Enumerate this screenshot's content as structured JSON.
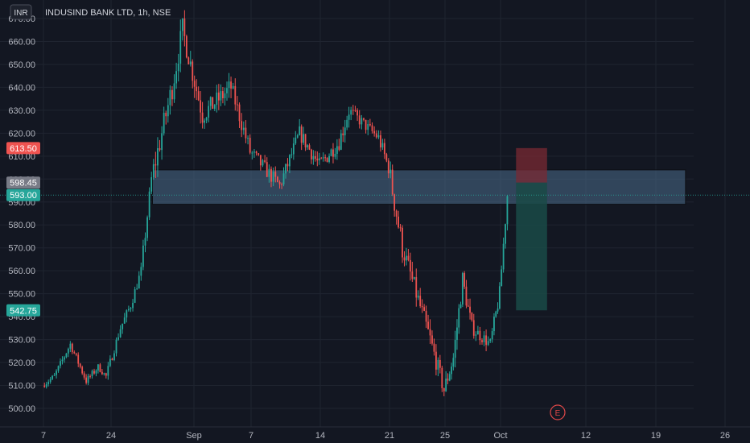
{
  "header": {
    "currency": "INR",
    "title": "INDUSIND BANK LTD, 1h, NSE"
  },
  "colors": {
    "background": "#131722",
    "grid": "#1f2430",
    "up": "#26a69a",
    "down": "#ef5350",
    "axis_text": "#b2b5be",
    "zone_fill": "#4a6b8a",
    "zone_border": "#0d0f14",
    "stop_zone": "#7a2a33",
    "target_zone": "#1a4a47",
    "event_marker": "#e04848"
  },
  "axis": {
    "x_ticks": [
      "7",
      "24",
      "Sep",
      "7",
      "14",
      "21",
      "25",
      "Oct",
      "12",
      "19",
      "26"
    ],
    "y_ticks": [
      "500.00",
      "510.00",
      "520.00",
      "530.00",
      "540.00",
      "550.00",
      "560.00",
      "570.00",
      "580.00",
      "590.00",
      "600.00",
      "610.00",
      "620.00",
      "630.00",
      "640.00",
      "650.00",
      "660.00",
      "670.00"
    ]
  },
  "price_tags": [
    {
      "label": "613.50",
      "value": 613.5,
      "color": "#ef5350"
    },
    {
      "label": "598.45",
      "value": 598.45,
      "color": "#787b86"
    },
    {
      "label": "593.00",
      "value": 593.0,
      "color": "#26a69a"
    },
    {
      "label": "542.75",
      "value": 542.75,
      "color": "#26a69a"
    }
  ],
  "event_marker": {
    "label": "E"
  },
  "chart_data": {
    "type": "candlestick",
    "ylim": [
      496,
      674
    ],
    "grid": true,
    "last_price": 593.0,
    "zones": [
      {
        "name": "demand-zone",
        "start": "Aug 28",
        "end": "Oct 22",
        "low": 589,
        "high": 604
      },
      {
        "name": "stop-zone",
        "start": "Oct 3",
        "end": "Oct 7",
        "low": 598.45,
        "high": 613.5
      },
      {
        "name": "target-zone",
        "start": "Oct 3",
        "end": "Oct 7",
        "low": 542.75,
        "high": 598.45
      }
    ],
    "segments": [
      {
        "start": "Aug 7",
        "end": "Aug 10",
        "from": 510,
        "to": 514,
        "vol": 1.2
      },
      {
        "start": "Aug 10",
        "end": "Aug 14",
        "from": 514,
        "to": 528,
        "vol": 1.5
      },
      {
        "start": "Aug 14",
        "end": "Aug 18",
        "from": 528,
        "to": 512,
        "vol": 1.5
      },
      {
        "start": "Aug 18",
        "end": "Aug 21",
        "from": 512,
        "to": 518,
        "vol": 1.4
      },
      {
        "start": "Aug 21",
        "end": "Aug 23",
        "from": 518,
        "to": 514,
        "vol": 1.2
      },
      {
        "start": "Aug 23",
        "end": "Aug 25",
        "from": 514,
        "to": 535,
        "vol": 1.8
      },
      {
        "start": "Aug 25",
        "end": "Aug 26",
        "from": 535,
        "to": 545,
        "vol": 2.0
      },
      {
        "start": "Aug 26",
        "end": "Aug 27",
        "from": 545,
        "to": 560,
        "vol": 2.0
      },
      {
        "start": "Aug 27",
        "end": "Aug 28",
        "from": 560,
        "to": 600,
        "vol": 3.0
      },
      {
        "start": "Aug 28",
        "end": "Aug 30",
        "from": 600,
        "to": 640,
        "vol": 5.0
      },
      {
        "start": "Aug 30",
        "end": "Aug 31",
        "from": 640,
        "to": 665,
        "vol": 5.0
      },
      {
        "start": "Aug 31",
        "end": "Sep 2",
        "from": 665,
        "to": 628,
        "vol": 4.5
      },
      {
        "start": "Sep 2",
        "end": "Sep 5",
        "from": 628,
        "to": 640,
        "vol": 4.0
      },
      {
        "start": "Sep 5",
        "end": "Sep 7",
        "from": 640,
        "to": 612,
        "vol": 3.5
      },
      {
        "start": "Sep 7",
        "end": "Sep 10",
        "from": 612,
        "to": 597,
        "vol": 3.0
      },
      {
        "start": "Sep 10",
        "end": "Sep 12",
        "from": 597,
        "to": 620,
        "vol": 3.0
      },
      {
        "start": "Sep 12",
        "end": "Sep 14",
        "from": 620,
        "to": 606,
        "vol": 3.0
      },
      {
        "start": "Sep 14",
        "end": "Sep 16",
        "from": 606,
        "to": 616,
        "vol": 3.0
      },
      {
        "start": "Sep 16",
        "end": "Sep 17",
        "from": 616,
        "to": 630,
        "vol": 3.5
      },
      {
        "start": "Sep 17",
        "end": "Sep 20",
        "from": 630,
        "to": 618,
        "vol": 2.5
      },
      {
        "start": "Sep 20",
        "end": "Sep 21",
        "from": 618,
        "to": 605,
        "vol": 3.0
      },
      {
        "start": "Sep 21",
        "end": "Sep 22",
        "from": 605,
        "to": 570,
        "vol": 5.0
      },
      {
        "start": "Sep 22",
        "end": "Sep 24",
        "from": 570,
        "to": 530,
        "vol": 4.0
      },
      {
        "start": "Sep 24",
        "end": "Sep 25",
        "from": 530,
        "to": 508,
        "vol": 3.5
      },
      {
        "start": "Sep 25",
        "end": "Sep 26",
        "from": 508,
        "to": 522,
        "vol": 3.5
      },
      {
        "start": "Sep 26",
        "end": "Sep 27",
        "from": 522,
        "to": 556,
        "vol": 4.0
      },
      {
        "start": "Sep 27",
        "end": "Sep 28",
        "from": 556,
        "to": 535,
        "vol": 3.5
      },
      {
        "start": "Sep 28",
        "end": "Sep 30",
        "from": 535,
        "to": 528,
        "vol": 2.5
      },
      {
        "start": "Sep 30",
        "end": "Oct 1",
        "from": 528,
        "to": 550,
        "vol": 3.0
      },
      {
        "start": "Oct 1",
        "end": "Oct 2",
        "from": 550,
        "to": 593,
        "vol": 3.0
      }
    ]
  }
}
